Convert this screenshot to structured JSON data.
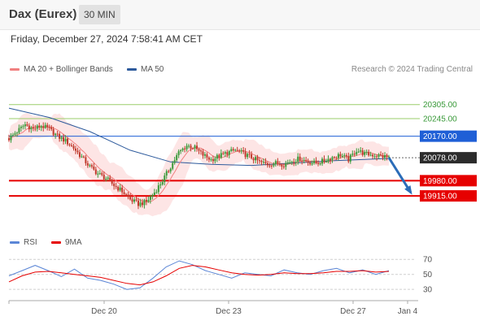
{
  "header": {
    "instrument": "Dax (Eurex)",
    "timeframe": "30 MIN"
  },
  "datetime": "Friday, December 27, 2024 7:58:41 AM CET",
  "credit": "Research © 2024 Trading Central",
  "legend": {
    "ma20_label": "MA 20 + Bollinger Bands",
    "ma50_label": "MA 50",
    "rsi_label": "RSI",
    "ma9_label": "9MA"
  },
  "colors": {
    "ma20": "#f08080",
    "ma50": "#2d5a9c",
    "bollinger_fill": "#fde0e0",
    "up_candle": "#3a9a3a",
    "down_candle": "#c0392b",
    "support": "#e60000",
    "resistance_blue": "#1f5fd6",
    "resistance_green": "#9acd6a",
    "price_label": "#2b2b2b",
    "rsi": "#5b86d6",
    "rsi_ma": "#e60000",
    "arrow": "#2b6cb8"
  },
  "chart_data": [
    {
      "type": "candlestick",
      "title": "Dax (Eurex)",
      "timeframe": "30 MIN",
      "y_range": [
        19780,
        20370
      ],
      "x_ticks": [
        "Dec 20",
        "Dec 23",
        "Dec 27",
        "Jan 4"
      ],
      "current_price": 20078.0,
      "levels": [
        {
          "value": 20305.0,
          "label": "20305.00",
          "kind": "resistance-green"
        },
        {
          "value": 20245.0,
          "label": "20245.00",
          "kind": "resistance-green"
        },
        {
          "value": 20170.0,
          "label": "20170.00",
          "kind": "resistance-blue"
        },
        {
          "value": 20078.0,
          "label": "20078.00",
          "kind": "last-price"
        },
        {
          "value": 19980.0,
          "label": "19980.00",
          "kind": "support"
        },
        {
          "value": 19915.0,
          "label": "19915.00",
          "kind": "support"
        }
      ],
      "forecast": {
        "from": 20078.0,
        "to": 19915.0,
        "direction": "down"
      },
      "price_path": [
        [
          0,
          20160
        ],
        [
          4,
          20190
        ],
        [
          8,
          20220
        ],
        [
          12,
          20200
        ],
        [
          16,
          20215
        ],
        [
          20,
          20200
        ],
        [
          24,
          20170
        ],
        [
          28,
          20150
        ],
        [
          32,
          20120
        ],
        [
          36,
          20080
        ],
        [
          40,
          20040
        ],
        [
          44,
          20010
        ],
        [
          48,
          19990
        ],
        [
          52,
          19960
        ],
        [
          56,
          19935
        ],
        [
          60,
          19900
        ],
        [
          64,
          19880
        ],
        [
          68,
          19890
        ],
        [
          72,
          19930
        ],
        [
          76,
          19980
        ],
        [
          80,
          20040
        ],
        [
          84,
          20100
        ],
        [
          88,
          20130
        ],
        [
          92,
          20120
        ],
        [
          96,
          20090
        ],
        [
          100,
          20070
        ],
        [
          104,
          20085
        ],
        [
          108,
          20100
        ],
        [
          112,
          20110
        ],
        [
          116,
          20095
        ],
        [
          120,
          20080
        ],
        [
          124,
          20060
        ],
        [
          128,
          20050
        ],
        [
          132,
          20055
        ],
        [
          136,
          20050
        ],
        [
          140,
          20065
        ],
        [
          144,
          20075
        ],
        [
          148,
          20060
        ],
        [
          152,
          20055
        ],
        [
          156,
          20065
        ],
        [
          160,
          20080
        ],
        [
          164,
          20090
        ],
        [
          168,
          20070
        ],
        [
          172,
          20110
        ],
        [
          176,
          20095
        ],
        [
          180,
          20090
        ],
        [
          184,
          20085
        ],
        [
          188,
          20080
        ]
      ],
      "ma50_path": [
        [
          0,
          20290
        ],
        [
          20,
          20250
        ],
        [
          40,
          20190
        ],
        [
          60,
          20110
        ],
        [
          80,
          20060
        ],
        [
          100,
          20050
        ],
        [
          120,
          20045
        ],
        [
          140,
          20055
        ],
        [
          160,
          20065
        ],
        [
          188,
          20075
        ]
      ]
    },
    {
      "type": "line",
      "title": "RSI",
      "y_range": [
        15,
        80
      ],
      "y_ticks": [
        70,
        50,
        30
      ],
      "series": [
        {
          "name": "RSI",
          "values": [
            48,
            55,
            62,
            55,
            47,
            57,
            45,
            42,
            37,
            30,
            32,
            45,
            60,
            68,
            63,
            55,
            50,
            45,
            52,
            50,
            48,
            56,
            52,
            50,
            55,
            58,
            52,
            56,
            50,
            55
          ]
        },
        {
          "name": "9MA",
          "values": [
            40,
            48,
            53,
            54,
            52,
            50,
            48,
            46,
            42,
            38,
            36,
            40,
            48,
            58,
            62,
            60,
            56,
            52,
            50,
            49,
            50,
            52,
            51,
            51,
            52,
            54,
            54,
            55,
            53,
            54
          ]
        }
      ]
    }
  ]
}
